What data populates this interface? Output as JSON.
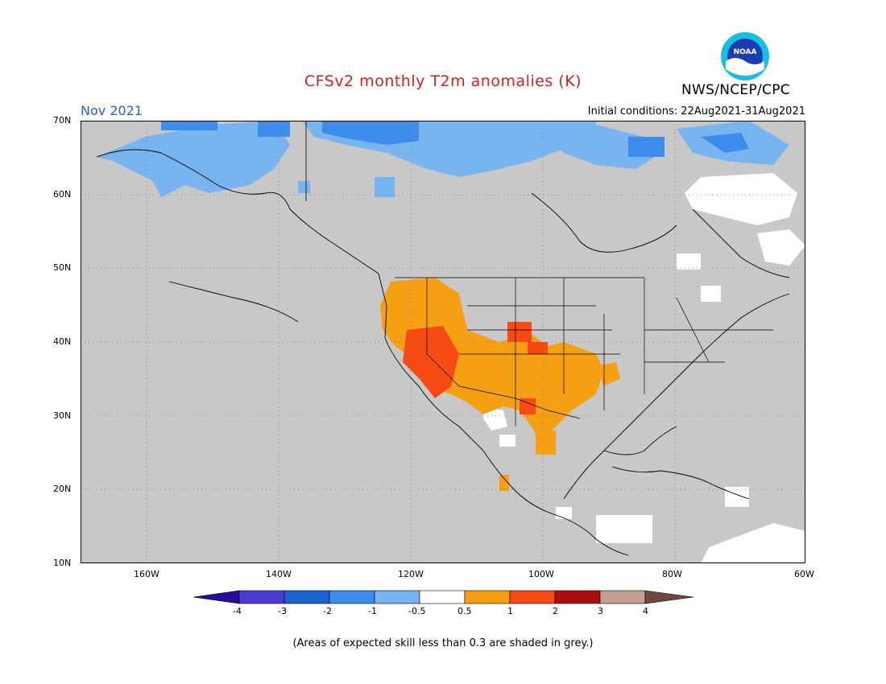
{
  "header": {
    "title": "CFSv2 monthly T2m anomalies (K)",
    "month": "Nov 2021",
    "initial_conditions": "Initial conditions: 22Aug2021-31Aug2021",
    "agency": "NWS/NCEP/CPC",
    "logo_text": "NOAA"
  },
  "map": {
    "lat_labels": [
      "70N",
      "60N",
      "50N",
      "40N",
      "30N",
      "20N",
      "10N"
    ],
    "lon_labels": [
      "160W",
      "140W",
      "120W",
      "100W",
      "80W",
      "60W"
    ],
    "extent": {
      "lon_min": -170,
      "lon_max": -60,
      "lat_min": 10,
      "lat_max": 70
    },
    "background_color": "#c8c8c8"
  },
  "colorbar": {
    "labels": [
      "-4",
      "-3",
      "-2",
      "-1",
      "-0.5",
      "0.5",
      "1",
      "2",
      "3",
      "4"
    ],
    "colors": [
      "#2a0c9c",
      "#4a3cd0",
      "#1e62d2",
      "#3c8cec",
      "#78b4f0",
      "#ffffff",
      "#f5a012",
      "#f54a14",
      "#a81010",
      "#c49e8e",
      "#704840"
    ]
  },
  "footnote": "(Areas of expected skill less than 0.3 are shaded in grey.)"
}
